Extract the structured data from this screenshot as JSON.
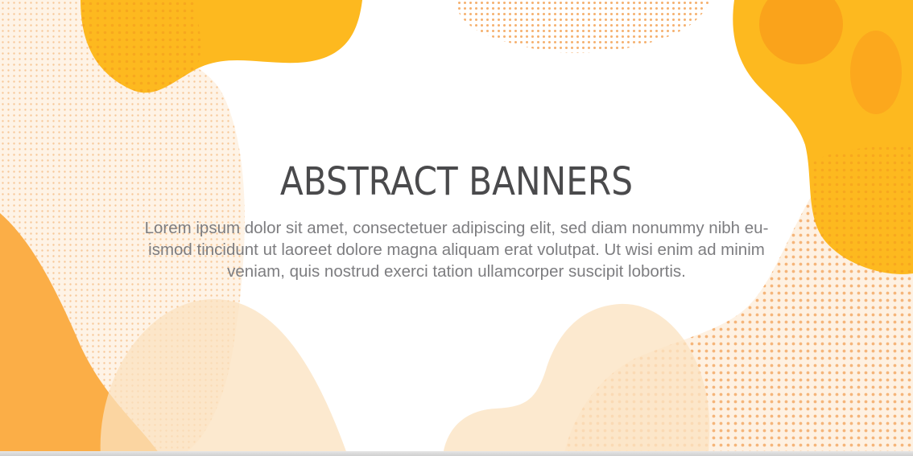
{
  "banner": {
    "title": "ABSTRACT BANNERS",
    "body_line_1": "Lorem ipsum dolor sit amet, consectetuer adipiscing elit, sed diam nonummy nibh eu-",
    "body_line_2": "ismod tincidunt ut laoreet dolore magna aliquam erat volutpat. Ut wisi enim ad minim",
    "body_line_3": "veniam, quis nostrud exerci tation ullamcorper suscipit lobortis."
  },
  "colors": {
    "primary_yellow": "#FDB91F",
    "deep_orange": "#FBA11D",
    "light_peach": "#FDEBD0",
    "dot_orange": "#F7B773",
    "title_gray": "#4A4A4C",
    "body_gray": "#7D7D80"
  }
}
